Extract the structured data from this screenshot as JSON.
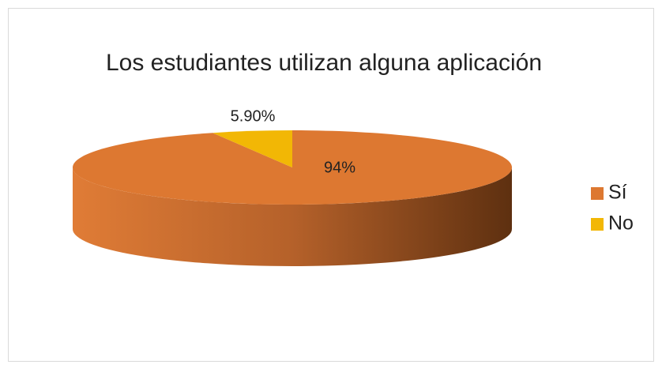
{
  "chart_data": {
    "type": "pie",
    "title": "Los estudiantes utilizan alguna aplicación",
    "categories": [
      "Sí",
      "No"
    ],
    "values": [
      94,
      5.9
    ],
    "value_labels": [
      "94%",
      "5.90%"
    ],
    "colors": [
      "#dd7831",
      "#f2b705"
    ],
    "legend": "right",
    "three_d": true
  }
}
